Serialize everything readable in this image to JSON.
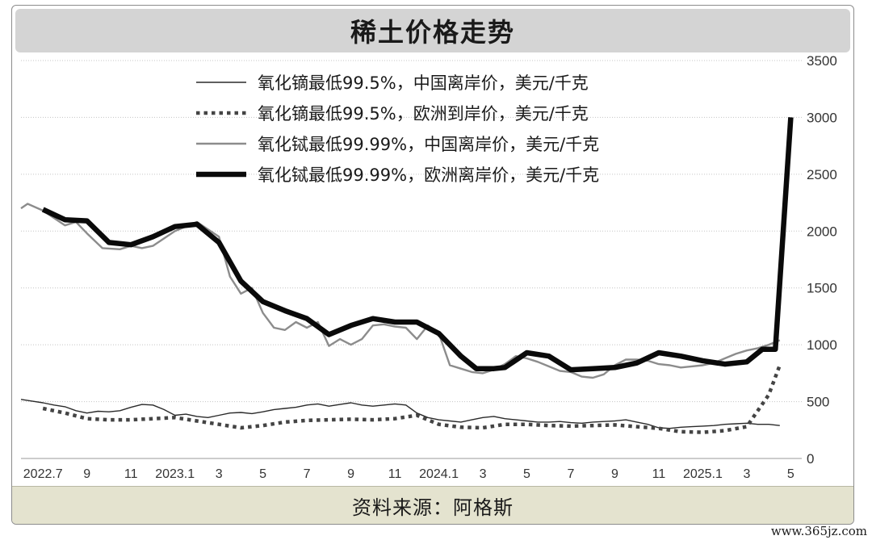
{
  "title": "稀土价格走势",
  "source": "资料来源：阿格斯",
  "watermark": "www.365jz.com",
  "chart_data": {
    "type": "line",
    "title": "稀土价格走势",
    "x_tick_labels": [
      "2022.7",
      "9",
      "11",
      "2023.1",
      "3",
      "5",
      "7",
      "9",
      "11",
      "2024.1",
      "3",
      "5",
      "7",
      "9",
      "11",
      "2025.1",
      "3",
      "5"
    ],
    "y_ticks": [
      0,
      500,
      1000,
      1500,
      2000,
      2500,
      3000,
      3500
    ],
    "ylim": [
      0,
      3500
    ],
    "y_axis_side": "right",
    "grid": "horizontal dotted",
    "legend_position": "top-left",
    "series": [
      {
        "name": "氧化镝最低99.5%，中国离岸价，美元/千克",
        "style": "thin-dark",
        "color": "#2a2a2a",
        "points": [
          [
            0,
            520
          ],
          [
            0.5,
            505
          ],
          [
            1,
            490
          ],
          [
            1.5,
            470
          ],
          [
            2,
            455
          ],
          [
            2.5,
            420
          ],
          [
            3,
            400
          ],
          [
            3.5,
            415
          ],
          [
            4,
            410
          ],
          [
            4.5,
            420
          ],
          [
            5,
            450
          ],
          [
            5.5,
            475
          ],
          [
            6,
            470
          ],
          [
            6.5,
            430
          ],
          [
            7,
            380
          ],
          [
            7.5,
            390
          ],
          [
            8,
            370
          ],
          [
            8.5,
            360
          ],
          [
            9,
            380
          ],
          [
            9.5,
            400
          ],
          [
            10,
            405
          ],
          [
            10.5,
            395
          ],
          [
            11,
            410
          ],
          [
            11.5,
            430
          ],
          [
            12,
            440
          ],
          [
            12.5,
            450
          ],
          [
            13,
            470
          ],
          [
            13.5,
            480
          ],
          [
            14,
            460
          ],
          [
            14.5,
            475
          ],
          [
            15,
            490
          ],
          [
            15.5,
            470
          ],
          [
            16,
            460
          ],
          [
            16.5,
            470
          ],
          [
            17,
            480
          ],
          [
            17.5,
            470
          ],
          [
            18,
            400
          ],
          [
            18.5,
            360
          ],
          [
            19,
            340
          ],
          [
            19.5,
            330
          ],
          [
            20,
            320
          ],
          [
            20.5,
            340
          ],
          [
            21,
            360
          ],
          [
            21.5,
            370
          ],
          [
            22,
            350
          ],
          [
            22.5,
            340
          ],
          [
            23,
            330
          ],
          [
            23.5,
            320
          ],
          [
            24,
            320
          ],
          [
            24.5,
            325
          ],
          [
            25,
            315
          ],
          [
            25.5,
            310
          ],
          [
            26,
            320
          ],
          [
            26.5,
            325
          ],
          [
            27,
            330
          ],
          [
            27.5,
            340
          ],
          [
            28,
            320
          ],
          [
            28.5,
            300
          ],
          [
            29,
            270
          ],
          [
            29.5,
            265
          ],
          [
            30,
            275
          ],
          [
            30.5,
            280
          ],
          [
            31,
            285
          ],
          [
            31.5,
            290
          ],
          [
            32,
            300
          ],
          [
            32.5,
            305
          ],
          [
            33,
            310
          ],
          [
            33.5,
            300
          ],
          [
            34,
            300
          ],
          [
            34.5,
            290
          ]
        ]
      },
      {
        "name": "氧化镝最低99.5%，欧洲到岸价，美元/千克",
        "style": "dotted",
        "color": "#444444",
        "points": [
          [
            1,
            440
          ],
          [
            2,
            400
          ],
          [
            3,
            350
          ],
          [
            4,
            340
          ],
          [
            5,
            340
          ],
          [
            6,
            350
          ],
          [
            7,
            360
          ],
          [
            8,
            330
          ],
          [
            9,
            300
          ],
          [
            10,
            270
          ],
          [
            11,
            290
          ],
          [
            12,
            320
          ],
          [
            13,
            335
          ],
          [
            14,
            340
          ],
          [
            15,
            345
          ],
          [
            16,
            340
          ],
          [
            17,
            350
          ],
          [
            18,
            380
          ],
          [
            19,
            300
          ],
          [
            20,
            275
          ],
          [
            21,
            270
          ],
          [
            22,
            300
          ],
          [
            23,
            300
          ],
          [
            24,
            290
          ],
          [
            25,
            285
          ],
          [
            26,
            290
          ],
          [
            27,
            295
          ],
          [
            28,
            280
          ],
          [
            29,
            265
          ],
          [
            30,
            235
          ],
          [
            31,
            230
          ],
          [
            32,
            245
          ],
          [
            33,
            280
          ],
          [
            34,
            560
          ],
          [
            34.5,
            820
          ]
        ]
      },
      {
        "name": "氧化铽最低99.99%，中国离岸价，美元/千克",
        "style": "medium-gray",
        "color": "#8c8c8c",
        "points": [
          [
            0,
            2200
          ],
          [
            0.3,
            2240
          ],
          [
            1,
            2180
          ],
          [
            2,
            2050
          ],
          [
            2.5,
            2080
          ],
          [
            3,
            1980
          ],
          [
            3.7,
            1850
          ],
          [
            4.5,
            1840
          ],
          [
            5,
            1870
          ],
          [
            5.5,
            1850
          ],
          [
            6,
            1870
          ],
          [
            7,
            2000
          ],
          [
            8,
            2080
          ],
          [
            9,
            1950
          ],
          [
            9.5,
            1600
          ],
          [
            10,
            1450
          ],
          [
            10.5,
            1500
          ],
          [
            11,
            1280
          ],
          [
            11.5,
            1150
          ],
          [
            12,
            1130
          ],
          [
            12.5,
            1200
          ],
          [
            13,
            1150
          ],
          [
            13.5,
            1200
          ],
          [
            14,
            990
          ],
          [
            14.5,
            1050
          ],
          [
            15,
            1000
          ],
          [
            15.5,
            1050
          ],
          [
            16,
            1170
          ],
          [
            16.5,
            1180
          ],
          [
            17,
            1160
          ],
          [
            17.5,
            1150
          ],
          [
            18,
            1050
          ],
          [
            18.5,
            1170
          ],
          [
            19,
            1100
          ],
          [
            19.5,
            820
          ],
          [
            20,
            790
          ],
          [
            20.5,
            760
          ],
          [
            21,
            750
          ],
          [
            21.5,
            780
          ],
          [
            22,
            830
          ],
          [
            22.5,
            900
          ],
          [
            23,
            880
          ],
          [
            23.5,
            850
          ],
          [
            24,
            810
          ],
          [
            24.5,
            770
          ],
          [
            25,
            760
          ],
          [
            25.5,
            720
          ],
          [
            26,
            710
          ],
          [
            26.5,
            740
          ],
          [
            27,
            820
          ],
          [
            27.5,
            870
          ],
          [
            28,
            870
          ],
          [
            28.5,
            860
          ],
          [
            29,
            830
          ],
          [
            29.5,
            820
          ],
          [
            30,
            800
          ],
          [
            30.5,
            810
          ],
          [
            31,
            820
          ],
          [
            31.5,
            840
          ],
          [
            32,
            880
          ],
          [
            32.5,
            920
          ],
          [
            33,
            950
          ],
          [
            33.5,
            970
          ],
          [
            34,
            1000
          ],
          [
            34.5,
            1040
          ]
        ]
      },
      {
        "name": "氧化铽最低99.99%，欧洲离岸价，美元/千克",
        "style": "thick-black",
        "color": "#0a0a0a",
        "points": [
          [
            1,
            2190
          ],
          [
            2,
            2100
          ],
          [
            3,
            2090
          ],
          [
            4,
            1900
          ],
          [
            5,
            1880
          ],
          [
            6,
            1950
          ],
          [
            7,
            2040
          ],
          [
            8,
            2060
          ],
          [
            9,
            1900
          ],
          [
            10,
            1560
          ],
          [
            11,
            1380
          ],
          [
            12,
            1300
          ],
          [
            13,
            1230
          ],
          [
            14,
            1090
          ],
          [
            15,
            1170
          ],
          [
            16,
            1230
          ],
          [
            17,
            1200
          ],
          [
            18,
            1200
          ],
          [
            19,
            1100
          ],
          [
            20,
            900
          ],
          [
            20.7,
            790
          ],
          [
            21.5,
            790
          ],
          [
            22,
            800
          ],
          [
            23,
            930
          ],
          [
            24,
            900
          ],
          [
            25,
            780
          ],
          [
            26,
            790
          ],
          [
            27,
            800
          ],
          [
            28,
            840
          ],
          [
            29,
            930
          ],
          [
            30,
            900
          ],
          [
            31,
            860
          ],
          [
            32,
            830
          ],
          [
            33,
            850
          ],
          [
            33.7,
            960
          ],
          [
            34,
            960
          ],
          [
            34.3,
            960
          ],
          [
            35,
            3000
          ]
        ]
      }
    ]
  }
}
